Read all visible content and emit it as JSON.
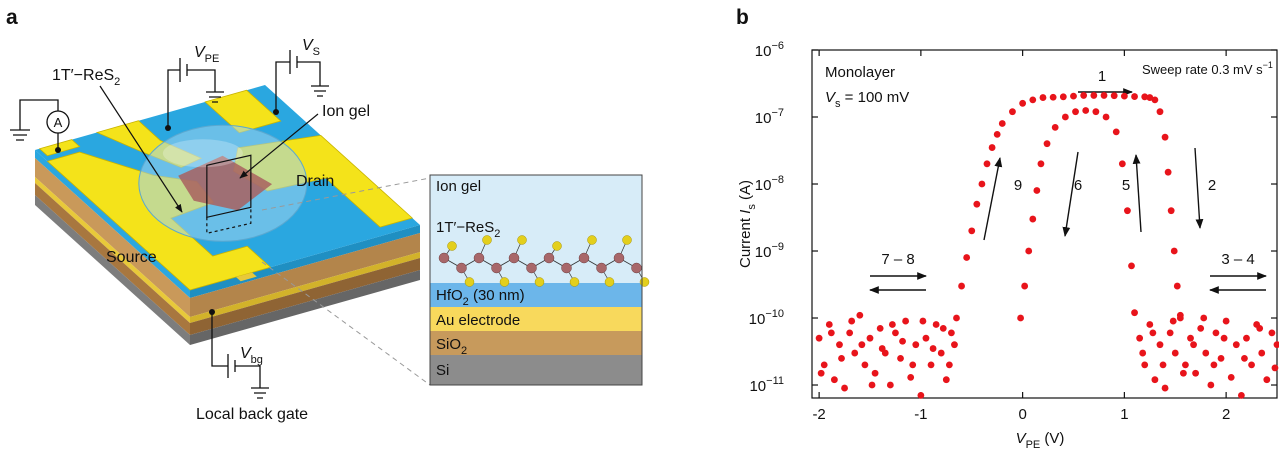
{
  "panel_a": {
    "label": "a",
    "flake_label": {
      "base": "1T′−ReS",
      "sub": "2"
    },
    "v_pe": {
      "base": "V",
      "sub": "PE"
    },
    "v_s": {
      "base": "V",
      "sub": "S"
    },
    "ammeter": "A",
    "ion_gel": "Ion gel",
    "drain": "Drain",
    "source": "Source",
    "v_bg": {
      "base": "V",
      "sub": "bg"
    },
    "back_gate": "Local back gate",
    "cross_section": {
      "ion_gel": "Ion gel",
      "flake": {
        "base": "1T′−ReS",
        "sub": "2"
      },
      "hfo2": {
        "base": "HfO",
        "sub": "2",
        "rest": " (30 nm)"
      },
      "au": "Au electrode",
      "sio2": {
        "base": "SiO",
        "sub": "2"
      },
      "si": "Si"
    }
  },
  "chart_data": {
    "type": "scatter",
    "panel_label": "b",
    "xlabel": {
      "base": "V",
      "sub": "PE",
      "rest": " (V)"
    },
    "ylabel": {
      "text": "Current ",
      "base": "I",
      "sub": "s",
      "rest": " (A)"
    },
    "log_y": true,
    "color": "#e8141b",
    "xlim": [
      -2.07,
      2.5
    ],
    "xticks": [
      -2,
      -1,
      0,
      1,
      2
    ],
    "ylim": [
      6.4e-12,
      1e-06
    ],
    "yticks": [
      {
        "value": 1e-06,
        "label": "10",
        "exponent": "−6"
      },
      {
        "value": 1e-07,
        "label": "10",
        "exponent": "−7"
      },
      {
        "value": 1e-08,
        "label": "10",
        "exponent": "−8"
      },
      {
        "value": 1e-09,
        "label": "10",
        "exponent": "−9"
      },
      {
        "value": 1e-10,
        "label": "10",
        "exponent": "−10"
      },
      {
        "value": 1e-11,
        "label": "10",
        "exponent": "−11"
      }
    ],
    "annotations": {
      "sample": "Monolayer",
      "bias": {
        "base": "V",
        "sub": "s",
        "rest": " = 100 mV"
      },
      "rate": {
        "text": "Sweep rate 0.3 mV s",
        "exponent": "−1"
      },
      "steps": [
        "1",
        "2",
        "5",
        "6",
        "9",
        "7 – 8",
        "3 – 4"
      ]
    },
    "x": [
      -2.0,
      -1.95,
      -1.9,
      -1.85,
      -1.8,
      -1.75,
      -1.7,
      -1.65,
      -1.6,
      -1.55,
      -1.5,
      -1.45,
      -1.4,
      -1.35,
      -1.3,
      -1.25,
      -1.2,
      -1.15,
      -1.1,
      -1.05,
      -1.0,
      -0.95,
      -0.9,
      -0.85,
      -0.8,
      -0.75,
      -0.7,
      -1.98,
      -1.88,
      -1.78,
      -1.68,
      -1.58,
      -1.48,
      -1.38,
      -1.28,
      -1.18,
      -1.08,
      -0.98,
      -0.88,
      -0.78,
      -0.72,
      -0.67,
      -0.65,
      -0.6,
      -0.55,
      -0.5,
      -0.45,
      -0.4,
      -0.35,
      -0.3,
      -0.25,
      -0.2,
      -0.1,
      0,
      0.1,
      0.2,
      0.4,
      0.6,
      0.8,
      1.0,
      1.2,
      1.3,
      1.35,
      1.4,
      1.43,
      1.46,
      1.49,
      1.52,
      1.55,
      0.3,
      0.5,
      0.7,
      0.9,
      1.1,
      1.25,
      -0.02,
      0.02,
      0.06,
      0.1,
      0.14,
      0.18,
      0.24,
      0.32,
      0.42,
      0.52,
      0.62,
      0.72,
      0.82,
      0.92,
      0.98,
      1.03,
      1.07,
      1.1,
      1.15,
      1.2,
      1.25,
      1.3,
      1.35,
      1.4,
      1.45,
      1.5,
      1.55,
      1.6,
      1.65,
      1.7,
      1.75,
      1.8,
      1.85,
      1.9,
      1.95,
      2.0,
      2.05,
      2.1,
      2.15,
      2.2,
      2.25,
      2.3,
      2.35,
      2.4,
      2.45,
      2.5,
      1.18,
      1.28,
      1.38,
      1.48,
      1.58,
      1.68,
      1.78,
      1.88,
      1.98,
      2.18,
      2.33,
      2.48
    ],
    "values": [
      5e-11,
      2e-11,
      8e-11,
      1.2e-11,
      4e-11,
      9e-12,
      6e-11,
      3e-11,
      1.1e-10,
      2e-11,
      5e-11,
      1.5e-11,
      7e-11,
      3e-11,
      1e-11,
      6e-11,
      2.5e-11,
      9e-11,
      1.3e-11,
      4e-11,
      7e-12,
      5e-11,
      2e-11,
      8e-11,
      3e-11,
      1.2e-11,
      6e-11,
      1.5e-11,
      6e-11,
      2.5e-11,
      9e-11,
      4e-11,
      1e-11,
      3.5e-11,
      8e-11,
      4.5e-11,
      2e-11,
      9e-11,
      3.5e-11,
      7e-11,
      2e-11,
      4e-11,
      1e-10,
      3e-10,
      8e-10,
      2e-09,
      5e-09,
      1e-08,
      2e-08,
      3.5e-08,
      5.5e-08,
      8e-08,
      1.2e-07,
      1.6e-07,
      1.8e-07,
      1.95e-07,
      2e-07,
      2.1e-07,
      2.1e-07,
      2.05e-07,
      2e-07,
      1.8e-07,
      1.2e-07,
      5e-08,
      1.5e-08,
      4e-09,
      1e-09,
      3e-10,
      1e-10,
      1.97e-07,
      2.05e-07,
      2.1e-07,
      2.08e-07,
      2.02e-07,
      1.95e-07,
      1e-10,
      3e-10,
      1e-09,
      3e-09,
      8e-09,
      2e-08,
      4e-08,
      7e-08,
      1e-07,
      1.2e-07,
      1.25e-07,
      1.2e-07,
      1e-07,
      6e-08,
      2e-08,
      4e-09,
      6e-10,
      1.2e-10,
      5e-11,
      2e-11,
      8e-11,
      1.2e-11,
      4e-11,
      9e-12,
      6e-11,
      3e-11,
      1.1e-10,
      2e-11,
      5e-11,
      1.5e-11,
      7e-11,
      3e-11,
      1e-11,
      6e-11,
      2.5e-11,
      9e-11,
      1.3e-11,
      4e-11,
      7e-12,
      5e-11,
      2e-11,
      8e-11,
      3e-11,
      1.2e-11,
      6e-11,
      4e-11,
      3e-11,
      6e-11,
      2e-11,
      9e-11,
      1.5e-11,
      4e-11,
      1e-10,
      2e-11,
      5e-11,
      2.5e-11,
      7e-11,
      1.8e-11
    ]
  }
}
